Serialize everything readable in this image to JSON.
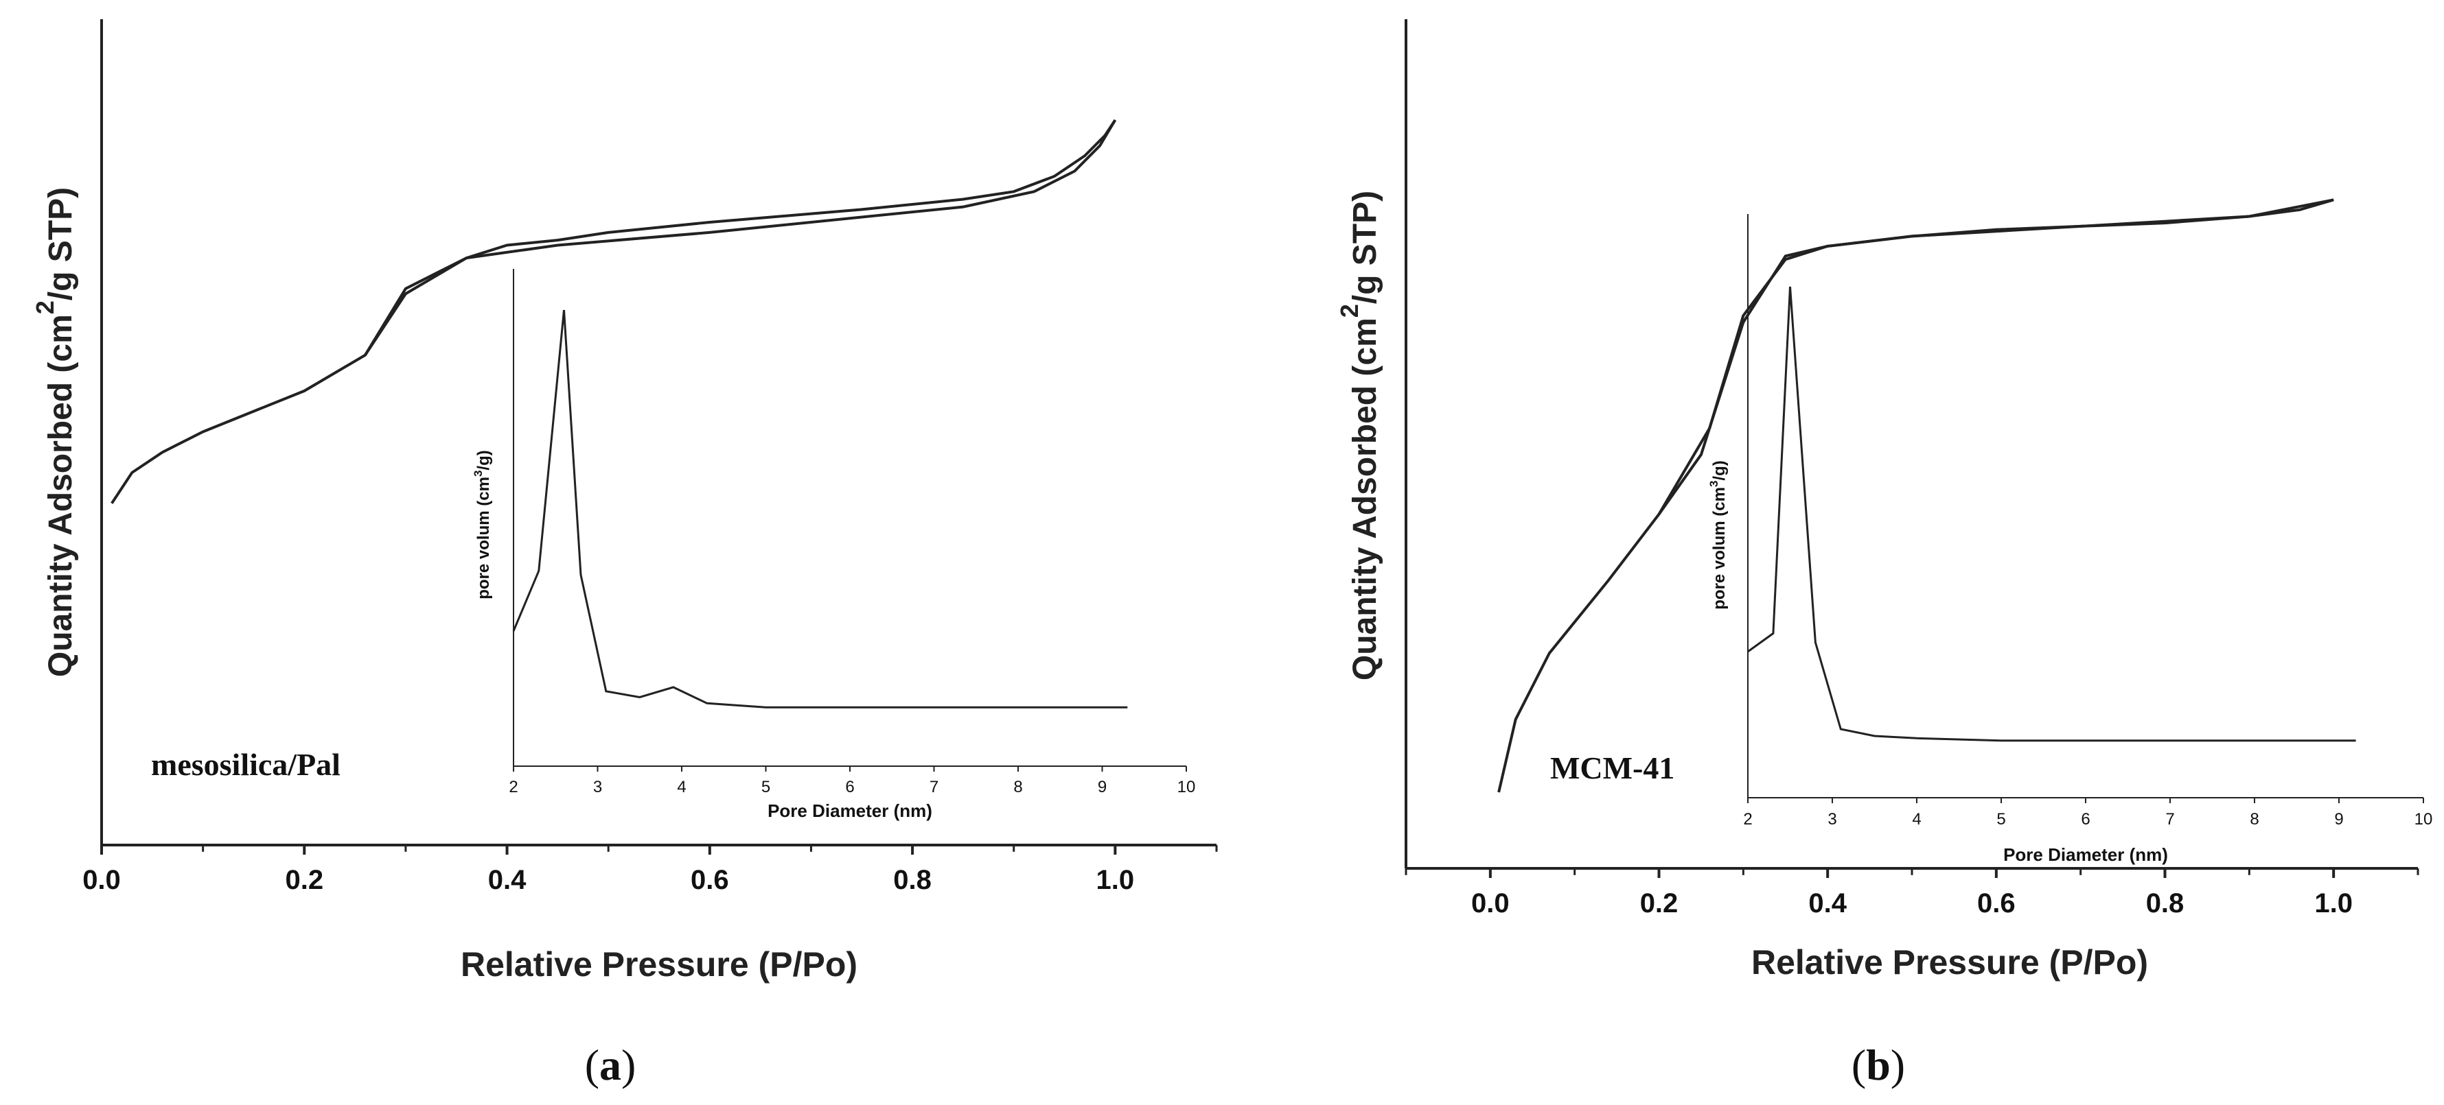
{
  "chart_data": [
    {
      "type": "line",
      "panel_label": "a",
      "sample_label": "mesosilica/Pal",
      "xlabel": "Relative Pressure (P/Po)",
      "ylabel": "Quantity Adsorbed (cm",
      "ylabel_sup": "2",
      "ylabel_suffix": "/g STP)",
      "xlim": [
        0.0,
        1.1
      ],
      "ylim": [
        0,
        100
      ],
      "xticks": [
        "0.0",
        "0.2",
        "0.4",
        "0.6",
        "0.8",
        "1.0"
      ],
      "series": [
        {
          "name": "adsorption",
          "x": [
            0.01,
            0.03,
            0.06,
            0.1,
            0.15,
            0.2,
            0.26,
            0.3,
            0.36,
            0.45,
            0.6,
            0.75,
            0.85,
            0.92,
            0.96,
            0.985,
            1.0
          ],
          "y": [
            25,
            31,
            35,
            39,
            43,
            47,
            54,
            66,
            73,
            75.5,
            78,
            81,
            83,
            86,
            90,
            95,
            100
          ]
        },
        {
          "name": "desorption",
          "x": [
            1.0,
            0.99,
            0.97,
            0.94,
            0.9,
            0.85,
            0.75,
            0.6,
            0.5,
            0.45,
            0.4,
            0.36,
            0.3,
            0.26
          ],
          "y": [
            100,
            97,
            93,
            89,
            86,
            84.5,
            82.5,
            80,
            78,
            76.5,
            75.5,
            73,
            67,
            54
          ]
        }
      ],
      "inset": {
        "type": "line",
        "xlabel": "Pore Diameter (nm)",
        "ylabel": "pore volum (cm",
        "ylabel_sup": "3",
        "ylabel_suffix": "/g)",
        "xlim": [
          2,
          10
        ],
        "ylim": [
          0,
          100
        ],
        "xticks": [
          "2",
          "3",
          "4",
          "5",
          "6",
          "7",
          "8",
          "9",
          "10"
        ],
        "x": [
          2.0,
          2.3,
          2.6,
          2.8,
          3.1,
          3.5,
          3.9,
          4.3,
          5.0,
          6.0,
          9.3
        ],
        "y": [
          20,
          35,
          100,
          34,
          5,
          3.5,
          6,
          2,
          1,
          1,
          1
        ]
      }
    },
    {
      "type": "line",
      "panel_label": "b",
      "sample_label": "MCM-41",
      "xlabel": "Relative Pressure (P/Po)",
      "ylabel": "Quantity Adsorbed (cm",
      "ylabel_sup": "2",
      "ylabel_suffix": "/g STP)",
      "xlim": [
        -0.1,
        1.1
      ],
      "ylim": [
        0,
        100
      ],
      "xticks": [
        "0.0",
        "0.2",
        "0.4",
        "0.6",
        "0.8",
        "1.0"
      ],
      "series": [
        {
          "name": "adsorption",
          "x": [
            0.01,
            0.03,
            0.07,
            0.14,
            0.2,
            0.25,
            0.3,
            0.35,
            0.4,
            0.5,
            0.6,
            0.7,
            0.8,
            0.9,
            0.96,
            1.0
          ],
          "y": [
            0,
            11,
            21,
            32,
            42,
            51,
            71,
            81,
            82.5,
            84,
            85,
            85.5,
            86,
            87,
            88,
            89.5
          ]
        },
        {
          "name": "desorption",
          "x": [
            1.0,
            0.9,
            0.7,
            0.5,
            0.4,
            0.35,
            0.3,
            0.26,
            0.2
          ],
          "y": [
            89.5,
            87,
            85.5,
            84,
            82.5,
            80.5,
            72,
            55,
            42
          ]
        }
      ],
      "inset": {
        "type": "line",
        "xlabel": "Pore Diameter (nm)",
        "ylabel": "pore volum (cm",
        "ylabel_sup": "3",
        "ylabel_suffix": "/g)",
        "xlim": [
          2,
          10
        ],
        "ylim": [
          0,
          100
        ],
        "xticks": [
          "2",
          "3",
          "4",
          "5",
          "6",
          "7",
          "8",
          "9",
          "10"
        ],
        "x": [
          2.0,
          2.3,
          2.5,
          2.8,
          3.1,
          3.5,
          4.0,
          5.0,
          6.0,
          9.2
        ],
        "y": [
          20,
          24,
          100,
          22,
          3,
          1.5,
          1,
          0.5,
          0.5,
          0.5
        ]
      }
    }
  ]
}
